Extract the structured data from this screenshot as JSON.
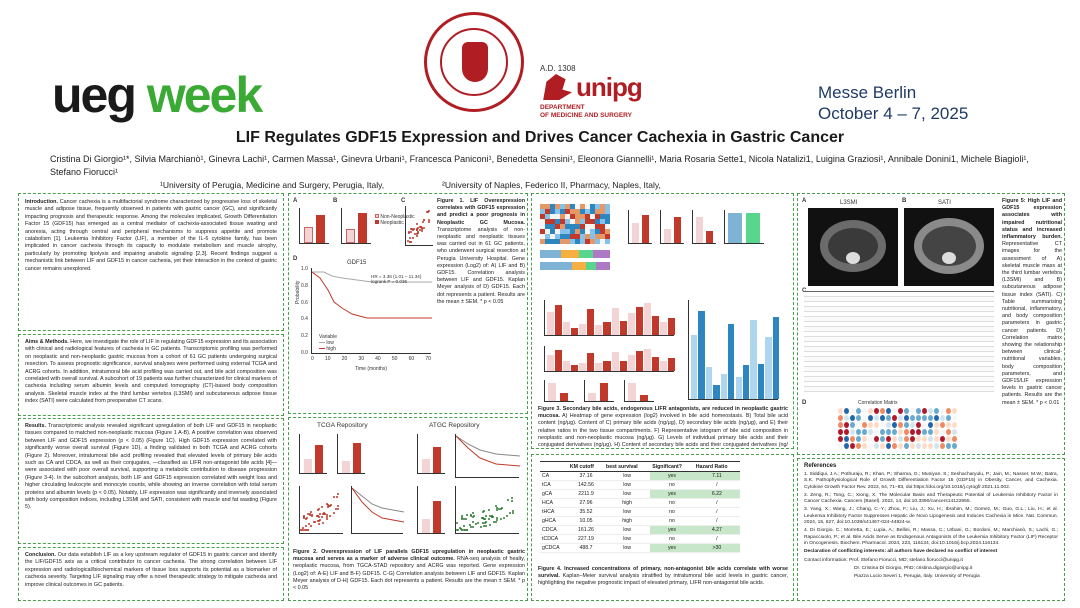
{
  "header": {
    "logo": {
      "ueg": "ueg",
      "week": "week"
    },
    "seal_caption": "STUDIUM GENERALE CIVITATIS PERUSII · A.D. MCCCVIII",
    "ad_year": "A.D. 1308",
    "unipg": "unipg",
    "department": "DEPARTMENT\nOF MEDICINE AND SURGERY",
    "venue": "Messe Berlin",
    "dates": "October 4 – 7, 2025",
    "title": "LIF Regulates GDF15 Expression and Drives Cancer Cachexia in Gastric Cancer",
    "authors": "Cristina Di Giorgio¹*, Silvia Marchianò¹, Ginevra Lachi¹, Carmen Massa¹, Ginevra Urbani¹, Francesca Paniconi¹, Benedetta Sensini¹, Eleonora Giannelli¹, Maria Rosaria Sette1, Nicola Natalizi1, Luigina Graziosi¹, Annibale Donini1, Michele Biagioli¹, Stefano Fiorucci¹",
    "affiliation1": "¹University of Perugia, Medicine and Surgery, Perugia, Italy,",
    "affiliation2": "²University of Naples, Federico II, Pharmacy, Naples, Italy,"
  },
  "intro": {
    "heading": "Introduction.",
    "text": "Cancer cachexia is a multifactorial syndrome characterized by progressive loss of skeletal muscle and adipose tissue, frequently observed in patients with gastric cancer (GC), and significantly impacting prognosis and therapeutic response. Among the molecules implicated, Growth Differentiation Factor 15 (GDF15) has emerged as a central mediator of cachexia-associated tissue wasting and anorexia, acting through central and peripheral mechanisms to suppress appetite and promote catabolism [1]. Leukemia Inhibitory Factor (LIF), a member of the IL-6 cytokine family, has been implicated in cancer cachexia through its capacity to modulate metabolism and muscle atrophy, particularly by promoting lipolysis and impairing anabolic signaling [2,3]. Recent findings suggest a mechanistic link between LIF and GDF15 in cancer cachexia, yet their interaction in the context of gastric cancer remains unexplored."
  },
  "aims": {
    "heading": "Aims & Methods.",
    "text": "Here, we investigate the role of LIF in regulating GDF15 expression and its association with clinical and radiological features of cachexia in GC patients. Transcriptomic profiling was performed on neoplastic and non-neoplastic gastric mucosa from a cohort of 61 GC patients undergoing surgical resection. To assess prognostic significance, survival analyses were performed using external TCGA and ACRG cohorts. In addition, intratumoral bile acid profiling was carried out, and bile acid composition was correlated with overall survival. A subcohort of 19 patients was further characterized for clinical markers of cachexia including serum albumin levels and computed tomography (CT)-based body composition analysis. Skeletal muscle index at the third lumbar vertebra (L3SMI) and subcutaneous adipose tissue index (SATI) were calculated from preoperative CT scans."
  },
  "results": {
    "heading": "Results.",
    "text": "Transcriptomic analysis revealed significant upregulation of both LIF and GDF15 in neoplastic tissues compared to matched non-neoplastic mucosa (Figure 1 A-B). A positive correlation was observed between LIF and GDF15 expression (p < 0.05) (Figure 1C). High GDF15 expression correlated with significantly worse overall survival (Figure 1D), a finding validated in both TCGA and ACRG cohorts (Figure 2). Moreover, intratumoral bile acid profiling revealed that elevated levels of primary bile acids such as CA and CDCA, as well as their conjugates, —classified as LIFR non-antagonist bile acids [4]—were associated with poor overall survival, supporting a metabolic contribution to disease progression (Figure 3-4). In the subcohort analysis, both LIF and GDF15 expression correlated with weight loss and higher circulating leukocyte and monocyte counts, while showing an inverse correlation with total serum proteins and albumin levels (p < 0.05). Notably, LIF expression was significantly and inversely associated with body composition indices, including L3SMI and SATI, consistent with muscle and fat wasting (Figure 5)."
  },
  "conclusion": {
    "heading": "Conclusion.",
    "text": "Our data establish LIF as a key upstream regulator of GDF15 in gastric cancer and identify the LIF/GDF15 axis as a critical contributor to cancer cachexia. The strong correlation between LIF expression and radiological/biochemical markers of tissue loss supports its potential as a biomarker of cachexia severity. Targeting LIF signaling may offer a novel therapeutic strategy to mitigate cachexia and improve clinical outcomes in GC patients."
  },
  "fig1": {
    "caption_title": "Figure 1. LIF Overexpression correlates with GDF15 expression and predict a poor prognosis in Neoplastic GC Mucosa.",
    "caption_body": "Transcriptome analysis of non-neoplastic and neoplastic tissues was carried out in 61 GC patients, who underwent surgical resection at Perugia University Hospital. Gene expression (Log2) of: A) LIF and B) GDF15. Correlation analysis between LIF and GDF15. Kaplan Meyer analysis of D) GDF15. Each dot represents a patient. Results are the mean ± SEM. * p < 0.05",
    "panel_a": "A",
    "panel_b": "B",
    "panel_c": "C",
    "panel_d": "D",
    "legend_non": "Non-Neoplastic",
    "legend_neo": "Neoplastic",
    "km_title": "GDF15",
    "km_stats": "HR = 3.38 (1.01 – 11.34)\nlogrank P = 0.036",
    "km_ylabel": "Probability",
    "km_xlabel": "Time (months)",
    "km_variable": "Variable",
    "km_low": "low",
    "km_high": "high",
    "km_xticks": [
      "0",
      "10",
      "20",
      "30",
      "40",
      "50",
      "60",
      "70"
    ],
    "km_yticks": [
      "1.0",
      "0.8",
      "0.6",
      "0.4",
      "0.2",
      "0.0"
    ]
  },
  "fig2": {
    "tcga_title": "TCGA Repository",
    "atgc_title": "ATGC Repository",
    "caption_title": "Figure 2. Overexpression of LIF parallels GDF15 upregulation in neoplastic gastric mucosa and serves as a marker of adverse clinical outcome.",
    "caption_body": "RNA-seq analysis of healty, neoplastic mucosa, from TGCA-STAD repository and ACRG was reported. Gene expression (Log2) of: A-E) LIF and B-F) GDF15. C-G) Correlation analysis between LIF and GDF15. Kaplan Meyer analysis of D-H) GDF15. Each dot represents a patient. Results are the mean ± SEM. * p < 0.05"
  },
  "fig3": {
    "caption_title": "Figure 3. Secondary bile acids, endogenous LIFR antagonists, are reduced in neoplastic gastric mucosa.",
    "caption_body": "A) Heatmap of gene expression (log2) involved in bile acid homeostasis. B) Total bile acid content (ng/μg). Content of C) primary bile acids (ng/μg), D) secondary bile acids (ng/μg), and E) their relative ratios in the two tissue compartments. F) Representative istogram of bile acid composition in neoplastic and non-neoplastic mucosa (ng/μg). G) Levels of individual primary bile acids and their conjugated derivatives (ng/μg). H) Content of secondary bile acids and their conjugated derivatives (ng/μg). Content of I) LIFR Antagonist Bile Acids (ng/μg); J) LIFR Non-Antagonist (ng/μg) and K) Ratio between LIFR Antagonist and Non-Antagonist Bile Acids."
  },
  "fig4": {
    "table_headers": [
      "",
      "KM cutoff",
      "best survival",
      "Significant?",
      "Hazard Ratio"
    ],
    "rows": [
      {
        "name": "CA",
        "cutoff": "37.16",
        "best": "low",
        "sig": "yes",
        "hr": "7.11"
      },
      {
        "name": "tCA",
        "cutoff": "142.56",
        "best": "low",
        "sig": "no",
        "hr": "/"
      },
      {
        "name": "gCA",
        "cutoff": "2211.9",
        "best": "low",
        "sig": "yes",
        "hr": "6.22"
      },
      {
        "name": "HCA",
        "cutoff": "27.96",
        "best": "high",
        "sig": "no",
        "hr": "/"
      },
      {
        "name": "tHCA",
        "cutoff": "35.52",
        "best": "low",
        "sig": "no",
        "hr": "/"
      },
      {
        "name": "gHCA",
        "cutoff": "10.05",
        "best": "high",
        "sig": "no",
        "hr": "/"
      },
      {
        "name": "CDCA",
        "cutoff": "161.26",
        "best": "low",
        "sig": "yes",
        "hr": "4.27"
      },
      {
        "name": "tCDCA",
        "cutoff": "227.19",
        "best": "low",
        "sig": "no",
        "hr": "/"
      },
      {
        "name": "gCDCA",
        "cutoff": "488.7",
        "best": "low",
        "sig": "yes",
        "hr": ">30"
      }
    ],
    "caption_title": "Figure 4. Increased concentrations of primary, non-antagonist bile acids correlate with worse survival.",
    "caption_body": "Kaplan–Meier survival analysis stratified by intratumoral bile acid levels in gastric cancer, highlighting the negative prognostic impact of elevated primary, LIFR non-antagonist bile acids."
  },
  "fig5": {
    "label_l3smi": "L3SMI",
    "label_sati": "SATI",
    "panel_a": "A",
    "panel_b": "B",
    "panel_c": "C",
    "panel_d": "D",
    "matrix_title": "Correlation Matrix",
    "caption_title": "Figure 5: High LIF and GDF15 expression associates with impaired nutritional status and increased inflammatory burden.",
    "caption_body": "Representative CT images for the assessment of A) skeletal muscle mass at the third lumbar vertebra (L3SMI) and B) subcutaneous adipose tissue index (SATI). C) Table summarising nutritional, inflammatory, and body composition parameters in gastric cancer patients. D) Correlation matrix showing the relationship between clinical-nutritional variables, body composition parameters, and GDF15/LIF expression levels in gastric cancer patients. Results are the mean ± SEM. * p < 0.01"
  },
  "references": {
    "heading": "References",
    "items": [
      "1. Siddiqui, J.A.; Pothuraju, R.; Khan, P.; Sharma, G.; Muniyan, S.; Seshacharyulu, P.; Jain, M.; Nasser, M.W.; Batra, S.K. Pathophysiological Role of Growth Differentiation Factor 15 (GDF15) in Obesity, Cancer, and Cachexia. Cytokine Growth Factor Rev. 2022, 64, 71–83, doi:https://doi.org/10.1016/j.cytogfr.2021.11.002.",
      "2. Zeng, R.; Tong, C.; Xiong, X. The Molecular Basis and Therapeutic Potential of Leukemia Inhibitory Factor in Cancer Cachexia. Cancers (Basel). 2022, 14, doi:10.3390/cancers14122955.",
      "3. Yang, X.; Wang, J.; Chang, C.-Y.; Zhou, F.; Liu, J.; Xu, H.; Ibrahim, M.; Gomez, M.; Guo, G.L.; Liu, H.; et al. Leukemia Inhibitory Factor Suppresses Hepatic de Novo Lipogenesis and Induces Cachexia in Mice. Nat. Commun. 2024, 15, 627, doi:10.1038/s41467-024-44924-w.",
      "4. Di Giorgio, C.; Morretta, E.; Lupia, A.; Bellini, R.; Massa, C.; Urbani, G.; Bordoni, M.; Marchianò, S.; Lachi, G.; Rapacciuolo, P.; et al. Bile Acids Serve as Endogenous Antagonists of the Leukemia Inhibitory Factor (LIF) Receptor in Oncogenesis. Biochem. Pharmacol. 2024, 223, 116134, doi:10.1016/j.bcp.2024.116134."
    ],
    "coi": "Declaration of conflicting interests: all authors have declared no conflict of interest",
    "contact": "Contact information: Prof. Stefano Fiorucci, MD; stefano.fiorucci@unipg.it",
    "contact2": "Dr. Cristina Di Giorgio, PhD; cristina.digiorgio@unipg.it",
    "contact3": "Piazza Lucio Severi 1, Perugia, Italy. University of Perugia"
  },
  "colors": {
    "ueg_green": "#3aaa35",
    "unipg_red": "#b01e23",
    "venue_blue": "#1f3a66",
    "panel_border": "#4a9d4a"
  }
}
